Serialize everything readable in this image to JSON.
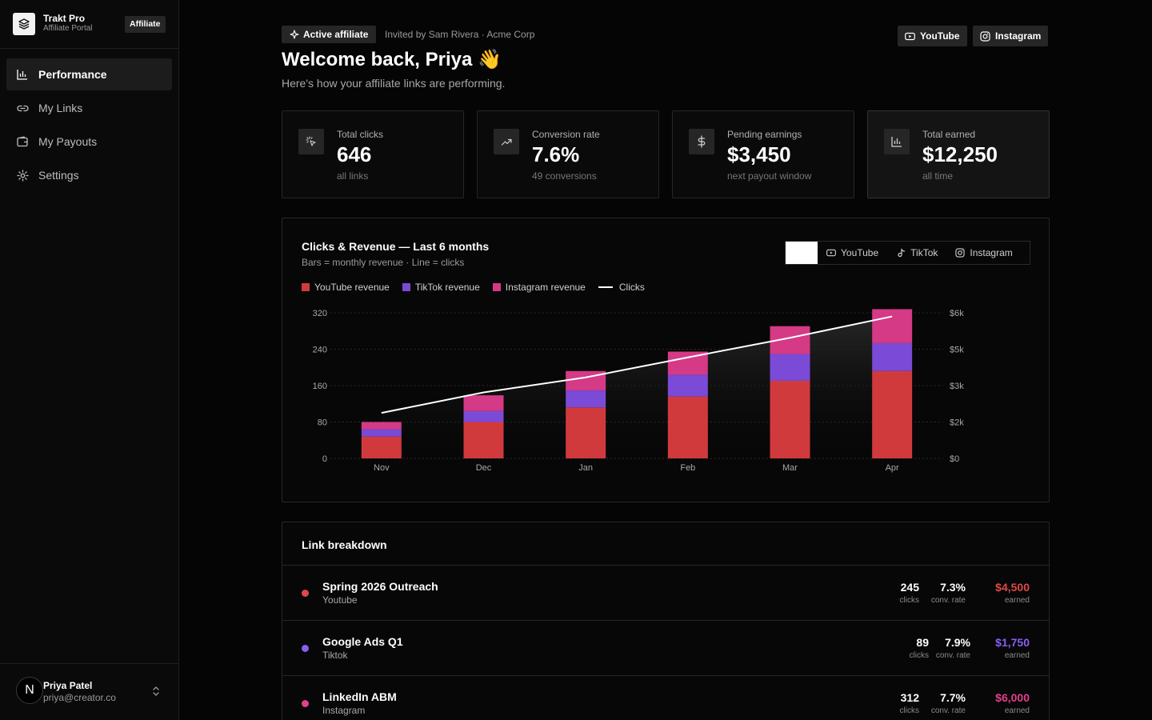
{
  "brand": {
    "name": "Trakt Pro",
    "subtitle": "Affiliate Portal",
    "badge": "Affiliate"
  },
  "nav": [
    {
      "label": "Performance",
      "icon": "bar-chart-icon",
      "active": true
    },
    {
      "label": "My Links",
      "icon": "link-icon",
      "active": false
    },
    {
      "label": "My Payouts",
      "icon": "wallet-icon",
      "active": false
    },
    {
      "label": "Settings",
      "icon": "gear-icon",
      "active": false
    }
  ],
  "user": {
    "initial": "N",
    "name": "Priya Patel",
    "email": "priya@creator.co"
  },
  "header": {
    "status_badge": "Active affiliate",
    "invited": "Invited by Sam Rivera · Acme Corp",
    "title": "Welcome back, Priya 👋",
    "subtitle": "Here's how your affiliate links are performing.",
    "youtube_button": "YouTube",
    "instagram_button": "Instagram"
  },
  "stats": [
    {
      "label": "Total clicks",
      "value": "646",
      "note": "all links",
      "icon": "cursor-click-icon"
    },
    {
      "label": "Conversion rate",
      "value": "7.6%",
      "note": "49 conversions",
      "icon": "trending-up-icon"
    },
    {
      "label": "Pending earnings",
      "value": "$3,450",
      "note": "next payout window",
      "icon": "dollar-icon"
    },
    {
      "label": "Total earned",
      "value": "$12,250",
      "note": "all time",
      "icon": "bar-chart-icon"
    }
  ],
  "chart": {
    "title": "Clicks & Revenue — Last 6 months",
    "subtitle": "Bars = monthly revenue · Line = clicks",
    "filters": {
      "all": "",
      "youtube": "YouTube",
      "tiktok": "TikTok",
      "instagram": "Instagram"
    },
    "legend": {
      "youtube": "YouTube revenue",
      "tiktok": "TikTok revenue",
      "instagram": "Instagram revenue",
      "clicks": "Clicks"
    }
  },
  "chart_data": {
    "type": "bar",
    "categories": [
      "Nov",
      "Dec",
      "Jan",
      "Feb",
      "Mar",
      "Apr"
    ],
    "series": [
      {
        "name": "YouTube revenue",
        "color": "#d13a3d",
        "values": [
          900,
          1500,
          2100,
          2550,
          3200,
          3600
        ]
      },
      {
        "name": "TikTok revenue",
        "color": "#7b4ad6",
        "values": [
          300,
          450,
          700,
          900,
          1100,
          1150
        ]
      },
      {
        "name": "Instagram revenue",
        "color": "#d43a86",
        "values": [
          300,
          650,
          800,
          950,
          1150,
          1400
        ]
      },
      {
        "name": "Clicks",
        "type": "line",
        "color": "#ffffff",
        "values": [
          100,
          145,
          178,
          222,
          265,
          312
        ]
      }
    ],
    "left_axis": {
      "ticks": [
        0,
        80,
        160,
        240,
        320
      ],
      "tick_labels": [
        "0",
        "80",
        "160",
        "240",
        "320"
      ],
      "ylim": [
        0,
        320
      ]
    },
    "right_axis": {
      "ticks": [
        0,
        1500,
        3000,
        4500,
        6000
      ],
      "tick_labels": [
        "$0",
        "$2k",
        "$3k",
        "$5k",
        "$6k"
      ],
      "ylim": [
        0,
        6000
      ]
    },
    "grid": true,
    "legend_position": "top-left"
  },
  "links": {
    "title": "Link breakdown",
    "rows": [
      {
        "name": "Spring 2026 Outreach",
        "source": "Youtube",
        "color": "#e04848",
        "clicks": "245",
        "clicks_label": "clicks",
        "conv": "7.3%",
        "conv_label": "conv. rate",
        "earned": "$4,500",
        "earned_label": "earned"
      },
      {
        "name": "Google Ads Q1",
        "source": "Tiktok",
        "color": "#8b5cf6",
        "clicks": "89",
        "clicks_label": "clicks",
        "conv": "7.9%",
        "conv_label": "conv. rate",
        "earned": "$1,750",
        "earned_label": "earned"
      },
      {
        "name": "LinkedIn ABM",
        "source": "Instagram",
        "color": "#e0408e",
        "clicks": "312",
        "clicks_label": "clicks",
        "conv": "7.7%",
        "conv_label": "conv. rate",
        "earned": "$6,000",
        "earned_label": "earned"
      }
    ]
  }
}
